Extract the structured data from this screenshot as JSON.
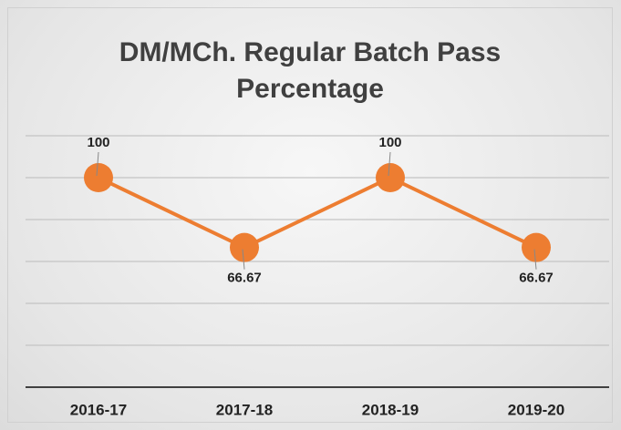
{
  "chart_data": {
    "type": "line",
    "title": "DM/MCh. Regular Batch Pass Percentage",
    "categories": [
      "2016-17",
      "2017-18",
      "2018-19",
      "2019-20"
    ],
    "values": [
      100,
      66.67,
      100,
      66.67
    ],
    "color": "#ed7d31",
    "ylim": [
      0,
      120
    ],
    "yticks": [
      0,
      20,
      40,
      60,
      80,
      100,
      120
    ],
    "grid": true
  }
}
